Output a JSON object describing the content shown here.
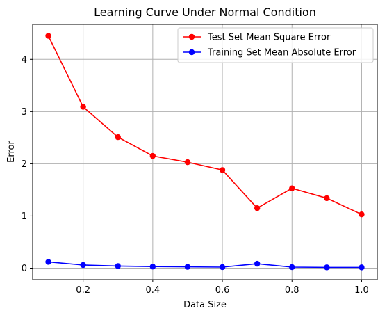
{
  "chart_data": {
    "type": "line",
    "title": "Learning Curve Under Normal Condition",
    "xlabel": "Data Size",
    "ylabel": "Error",
    "x": [
      0.1,
      0.2,
      0.3,
      0.4,
      0.5,
      0.6,
      0.7,
      0.8,
      0.9,
      1.0
    ],
    "xlim": [
      0.055,
      1.045
    ],
    "ylim": [
      -0.22,
      4.67
    ],
    "xticks": [
      0.2,
      0.4,
      0.6,
      0.8,
      1.0
    ],
    "xtick_labels": [
      "0.2",
      "0.4",
      "0.6",
      "0.8",
      "1.0"
    ],
    "yticks": [
      0,
      1,
      2,
      3,
      4
    ],
    "ytick_labels": [
      "0",
      "1",
      "2",
      "3",
      "4"
    ],
    "grid": true,
    "legend_position": "top-right",
    "series": [
      {
        "name": "Test Set Mean Square Error",
        "color": "#ff0000",
        "marker": "circle",
        "values": [
          4.45,
          3.09,
          2.51,
          2.15,
          2.03,
          1.88,
          1.15,
          1.53,
          1.34,
          1.03
        ]
      },
      {
        "name": "Training Set Mean Absolute Error",
        "color": "#0000ff",
        "marker": "circle",
        "values": [
          0.12,
          0.06,
          0.04,
          0.03,
          0.025,
          0.02,
          0.085,
          0.02,
          0.015,
          0.015
        ]
      }
    ]
  }
}
